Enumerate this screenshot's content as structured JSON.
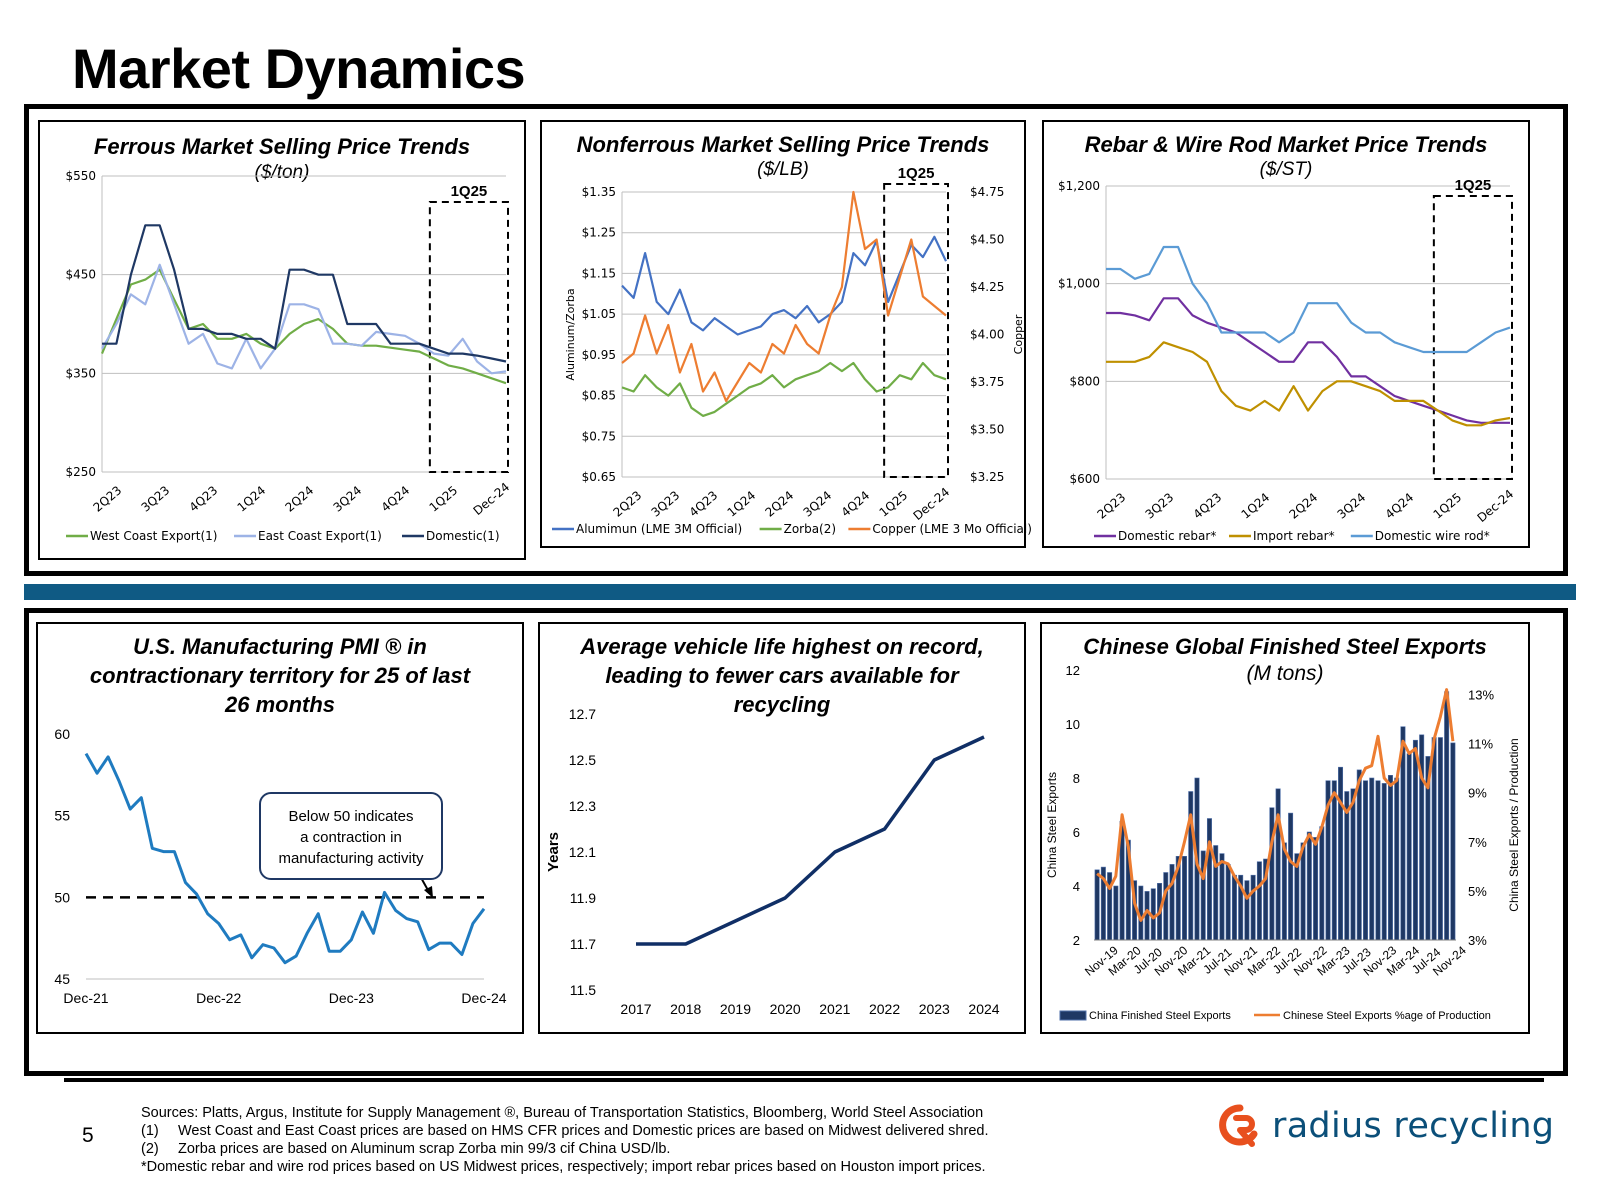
{
  "title": "Market Dynamics",
  "colors": {
    "accent": "#0f5a84",
    "blue": "#4472c4",
    "green": "#70ad47",
    "orange": "#ed7d31",
    "navy": "#1f3864",
    "purple": "#7030a0",
    "gold": "#bf9000",
    "sky": "#5b9bd5",
    "lightblue": "#9db3e6",
    "darkgreen": "#70ad47",
    "pmiblue": "#1f7bc0",
    "vehicle": "#102f66"
  },
  "page_number": "5",
  "sources": {
    "line1": "Sources: Platts, Argus, Institute for Supply Management ®, Bureau of Transportation Statistics, Bloomberg, World Steel Association",
    "n1": "(1)",
    "line2": "West Coast and East Coast prices are based on HMS CFR prices and Domestic prices are based on Midwest delivered shred.",
    "n2": "(2)",
    "line3": "Zorba prices are based on Aluminum scrap Zorba min 99/3 cif China USD/lb.",
    "line4": "*Domestic rebar and wire rod prices based on US Midwest prices, respectively; import rebar prices based on Houston import prices."
  },
  "logo": {
    "text": "radius recycling",
    "icon": "radius-r-logo-icon"
  },
  "panels": {
    "ferrous": {
      "title": "Ferrous Market Selling Price Trends",
      "subtitle": "($/ton)"
    },
    "nonferrous": {
      "title": "Nonferrous Market Selling Price Trends",
      "subtitle": "($/LB)"
    },
    "rebar": {
      "title": "Rebar & Wire Rod Market Price Trends",
      "subtitle": "($/ST)"
    },
    "pmi": {
      "title_lines": [
        "U.S. Manufacturing PMI ® in",
        "contractionary territory for 25 of last",
        "26 months"
      ],
      "callout_lines": [
        "Below 50 indicates",
        "a contraction in",
        "manufacturing activity"
      ]
    },
    "vehicle": {
      "title_lines": [
        "Average vehicle life highest on record,",
        "leading to fewer cars available for",
        "recycling"
      ]
    },
    "steel": {
      "title": "Chinese Global Finished Steel Exports",
      "subtitle": "(M tons)"
    }
  },
  "chart_data": [
    {
      "id": "ferrous",
      "type": "line",
      "title": "Ferrous Market Selling Price Trends",
      "subtitle": "($/ton)",
      "ylim": [
        250,
        550
      ],
      "yticks": [
        250,
        350,
        450,
        550
      ],
      "ytick_labels": [
        "$250",
        "$350",
        "$450",
        "$550"
      ],
      "xlabels": [
        "2Q23",
        "3Q23",
        "4Q23",
        "1Q24",
        "2Q24",
        "3Q24",
        "4Q24",
        "1Q25",
        "Dec-24"
      ],
      "highlight": {
        "label": "1Q25",
        "from_index": 7
      },
      "series": [
        {
          "name": "West Coast Export(1)",
          "color": "#70ad47",
          "values": [
            370,
            405,
            440,
            445,
            455,
            425,
            395,
            400,
            385,
            385,
            390,
            380,
            375,
            390,
            400,
            405,
            395,
            380,
            378,
            378,
            376,
            374,
            372,
            365,
            358,
            355,
            350,
            345,
            340
          ]
        },
        {
          "name": "East Coast Export(1)",
          "color": "#9db3e6",
          "values": [
            375,
            400,
            430,
            420,
            460,
            420,
            380,
            390,
            360,
            355,
            385,
            355,
            375,
            420,
            420,
            415,
            380,
            380,
            378,
            392,
            390,
            388,
            380,
            370,
            368,
            385,
            362,
            350,
            352
          ]
        },
        {
          "name": "Domestic(1)",
          "color": "#1f3864",
          "values": [
            380,
            380,
            450,
            500,
            500,
            455,
            395,
            395,
            390,
            390,
            385,
            385,
            375,
            455,
            455,
            450,
            450,
            400,
            400,
            400,
            380,
            380,
            380,
            375,
            370,
            370,
            368,
            365,
            362
          ]
        }
      ]
    },
    {
      "id": "nonferrous",
      "type": "line",
      "title": "Nonferrous Market Selling Price Trends",
      "subtitle": "($/LB)",
      "ylim": [
        0.65,
        1.35
      ],
      "yticks": [
        0.65,
        0.75,
        0.85,
        0.95,
        1.05,
        1.15,
        1.25,
        1.35
      ],
      "ytick_labels": [
        "$0.65",
        "$0.75",
        "$0.85",
        "$0.95",
        "$1.05",
        "$1.15",
        "$1.25",
        "$1.35"
      ],
      "y2lim": [
        3.25,
        4.75
      ],
      "y2ticks": [
        3.25,
        3.5,
        3.75,
        4.0,
        4.25,
        4.5,
        4.75
      ],
      "y2tick_labels": [
        "$3.25",
        "$3.50",
        "$3.75",
        "$4.00",
        "$4.25",
        "$4.50",
        "$4.75"
      ],
      "ylabel": "Aluminum/Zorba",
      "y2label": "Copper",
      "xlabels": [
        "2Q23",
        "3Q23",
        "4Q23",
        "1Q24",
        "2Q24",
        "3Q24",
        "4Q24",
        "1Q25",
        "Dec-24"
      ],
      "highlight": {
        "label": "1Q25",
        "from_index": 7
      },
      "series": [
        {
          "name": "Alumimun (LME 3M Official)",
          "color": "#4472c4",
          "axis": "left",
          "values": [
            1.12,
            1.09,
            1.2,
            1.08,
            1.05,
            1.11,
            1.03,
            1.01,
            1.04,
            1.02,
            1.0,
            1.01,
            1.02,
            1.05,
            1.06,
            1.04,
            1.07,
            1.03,
            1.05,
            1.08,
            1.2,
            1.17,
            1.23,
            1.08,
            1.15,
            1.22,
            1.19,
            1.24,
            1.18
          ]
        },
        {
          "name": "Zorba(2)",
          "color": "#70ad47",
          "axis": "left",
          "values": [
            0.87,
            0.86,
            0.9,
            0.87,
            0.85,
            0.88,
            0.82,
            0.8,
            0.81,
            0.83,
            0.85,
            0.87,
            0.88,
            0.9,
            0.87,
            0.89,
            0.9,
            0.91,
            0.93,
            0.91,
            0.93,
            0.89,
            0.86,
            0.87,
            0.9,
            0.89,
            0.93,
            0.9,
            0.89
          ]
        },
        {
          "name": "Copper (LME 3 Mo Official)",
          "color": "#ed7d31",
          "axis": "right",
          "values": [
            3.85,
            3.9,
            4.1,
            3.9,
            4.05,
            3.8,
            3.95,
            3.7,
            3.8,
            3.65,
            3.75,
            3.85,
            3.8,
            3.95,
            3.9,
            4.05,
            3.95,
            3.9,
            4.1,
            4.25,
            4.75,
            4.45,
            4.5,
            4.1,
            4.3,
            4.5,
            4.2,
            4.15,
            4.1
          ]
        }
      ]
    },
    {
      "id": "rebar",
      "type": "line",
      "title": "Rebar & Wire Rod Market Price Trends",
      "subtitle": "($/ST)",
      "ylim": [
        600,
        1200
      ],
      "yticks": [
        600,
        800,
        1000,
        1200
      ],
      "ytick_labels": [
        "$600",
        "$800",
        "$1,000",
        "$1,200"
      ],
      "xlabels": [
        "2Q23",
        "3Q23",
        "4Q23",
        "1Q24",
        "2Q24",
        "3Q24",
        "4Q24",
        "1Q25",
        "Dec-24"
      ],
      "highlight": {
        "label": "1Q25",
        "from_index": 7
      },
      "series": [
        {
          "name": "Domestic rebar*",
          "color": "#7030a0",
          "values": [
            940,
            940,
            935,
            925,
            970,
            970,
            935,
            920,
            910,
            900,
            880,
            860,
            840,
            840,
            880,
            880,
            850,
            810,
            810,
            790,
            770,
            760,
            750,
            740,
            730,
            720,
            715,
            715,
            715
          ]
        },
        {
          "name": "Import rebar*",
          "color": "#bf9000",
          "values": [
            840,
            840,
            840,
            850,
            880,
            870,
            860,
            840,
            780,
            750,
            740,
            760,
            740,
            790,
            740,
            780,
            800,
            800,
            790,
            780,
            760,
            760,
            760,
            740,
            720,
            710,
            710,
            720,
            725
          ]
        },
        {
          "name": "Domestic wire rod*",
          "color": "#5b9bd5",
          "values": [
            1030,
            1030,
            1010,
            1020,
            1075,
            1075,
            1000,
            960,
            900,
            900,
            900,
            900,
            880,
            900,
            960,
            960,
            960,
            920,
            900,
            900,
            880,
            870,
            860,
            860,
            860,
            860,
            880,
            900,
            910
          ]
        }
      ]
    },
    {
      "id": "pmi",
      "type": "line",
      "title": "U.S. Manufacturing PMI ® in contractionary territory for 25 of last 26 months",
      "ylim": [
        45,
        60
      ],
      "yticks": [
        45,
        50,
        55,
        60
      ],
      "ytick_labels": [
        "45",
        "50",
        "55",
        "60"
      ],
      "xlabels": [
        "Dec-21",
        "Dec-22",
        "Dec-23",
        "Dec-24"
      ],
      "reference_line": 50,
      "series": [
        {
          "name": "PMI",
          "color": "#1f7bc0",
          "values": [
            58.8,
            57.6,
            58.6,
            57.1,
            55.4,
            56.1,
            53.0,
            52.8,
            52.8,
            50.9,
            50.2,
            49.0,
            48.4,
            47.4,
            47.7,
            46.3,
            47.1,
            46.9,
            46.0,
            46.4,
            47.8,
            49.0,
            46.7,
            46.7,
            47.4,
            49.1,
            47.8,
            50.3,
            49.2,
            48.7,
            48.5,
            46.8,
            47.2,
            47.2,
            46.5,
            48.4,
            49.3
          ]
        }
      ]
    },
    {
      "id": "vehicle",
      "type": "line",
      "title": "Average vehicle life highest on record, leading to fewer cars available for recycling",
      "ylabel": "Years",
      "ylim": [
        11.5,
        12.7
      ],
      "yticks": [
        11.5,
        11.7,
        11.9,
        12.1,
        12.3,
        12.5,
        12.7
      ],
      "ytick_labels": [
        "11.5",
        "11.7",
        "11.9",
        "12.1",
        "12.3",
        "12.5",
        "12.7"
      ],
      "categories": [
        "2017",
        "2018",
        "2019",
        "2020",
        "2021",
        "2022",
        "2023",
        "2024"
      ],
      "series": [
        {
          "name": "Average vehicle life",
          "color": "#102f66",
          "values": [
            11.7,
            11.7,
            11.8,
            11.9,
            12.1,
            12.2,
            12.5,
            12.6
          ]
        }
      ]
    },
    {
      "id": "steel",
      "type": "bar+line",
      "title": "Chinese Global Finished Steel Exports",
      "subtitle": "(M tons)",
      "ylabel": "China Steel Exports",
      "y2label": "China Steel Exports / Production",
      "ylim": [
        2,
        12
      ],
      "yticks": [
        2,
        4,
        6,
        8,
        10,
        12
      ],
      "ytick_labels": [
        "2",
        "4",
        "6",
        "8",
        "10",
        "12"
      ],
      "y2lim": [
        3,
        14
      ],
      "y2ticks": [
        3,
        5,
        7,
        9,
        11,
        13
      ],
      "y2tick_labels": [
        "3%",
        "5%",
        "7%",
        "9%",
        "11%",
        "13%"
      ],
      "xlabels": [
        "Nov-19",
        "Mar-20",
        "Jul-20",
        "Nov-20",
        "Mar-21",
        "Jul-21",
        "Nov-21",
        "Mar-22",
        "Jul-22",
        "Nov-22",
        "Mar-23",
        "Jul-23",
        "Nov-23",
        "Mar-24",
        "Jul-24",
        "Nov-24"
      ],
      "series": [
        {
          "name": "China Finished Steel Exports",
          "color": "#1f3864",
          "kind": "bar",
          "axis": "left",
          "values": [
            4.6,
            4.7,
            4.5,
            4.0,
            6.4,
            5.7,
            4.2,
            4.0,
            3.8,
            3.9,
            4.1,
            4.5,
            4.8,
            5.1,
            5.1,
            7.5,
            8.0,
            5.3,
            6.5,
            5.5,
            5.2,
            4.8,
            4.4,
            4.4,
            4.2,
            4.4,
            4.9,
            5.0,
            6.9,
            7.6,
            5.6,
            6.7,
            5.2,
            5.6,
            6.0,
            5.8,
            6.2,
            7.9,
            7.9,
            8.4,
            7.5,
            7.6,
            8.3,
            7.9,
            8.0,
            7.9,
            7.8,
            8.1,
            8.0,
            9.9,
            8.9,
            9.4,
            9.6,
            8.8,
            9.5,
            9.5,
            11.2,
            9.3
          ]
        },
        {
          "name": "Chinese Steel Exports %age of Production",
          "color": "#ed7d31",
          "kind": "line",
          "axis": "right",
          "values": [
            5.7,
            5.5,
            5.1,
            5.6,
            8.1,
            6.8,
            4.5,
            3.8,
            4.2,
            3.9,
            4.1,
            5.0,
            5.3,
            6.0,
            7.0,
            8.1,
            6.1,
            5.5,
            7.0,
            6.0,
            6.2,
            6.1,
            5.6,
            5.2,
            4.7,
            5.0,
            5.2,
            5.5,
            7.0,
            8.1,
            6.7,
            6.2,
            6.0,
            6.8,
            7.3,
            6.9,
            7.6,
            8.5,
            9.0,
            8.6,
            8.2,
            8.6,
            9.5,
            10.0,
            10.1,
            11.3,
            9.6,
            9.3,
            9.5,
            11.1,
            10.6,
            10.8,
            9.6,
            9.2,
            11.2,
            12.1,
            13.2,
            11.1
          ]
        }
      ]
    }
  ]
}
